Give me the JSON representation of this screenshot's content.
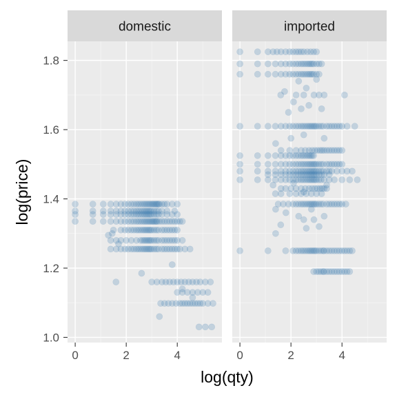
{
  "chart_data": {
    "type": "scatter",
    "xlabel": "log(qty)",
    "ylabel": "log(price)",
    "xlim": [
      -0.3,
      5.75
    ],
    "ylim": [
      0.985,
      1.855
    ],
    "x_ticks": [
      0,
      2,
      4
    ],
    "y_ticks": [
      1.0,
      1.2,
      1.4,
      1.6,
      1.8
    ],
    "x_tick_labels": [
      "0",
      "2",
      "4"
    ],
    "y_tick_labels": [
      "1.0",
      "1.2",
      "1.4",
      "1.6",
      "1.8"
    ],
    "grid": true,
    "point_color": "#4682b4",
    "point_alpha": 0.25,
    "facets": [
      {
        "name": "domestic",
        "bands": [
          {
            "y": 1.385,
            "x": [
              0,
              0.69,
              1.1,
              1.39,
              1.61,
              1.79,
              1.95,
              2.08,
              2.2,
              2.3,
              2.4,
              2.48,
              2.56,
              2.64,
              2.71,
              2.77,
              2.83,
              2.89,
              2.94,
              3.0,
              3.04,
              3.09,
              3.14,
              3.18,
              3.22,
              3.26,
              3.3,
              3.4,
              3.5,
              3.6,
              3.8,
              4.0
            ]
          },
          {
            "y": 1.365,
            "x": [
              0,
              0.69,
              1.1,
              1.39,
              1.61,
              1.79,
              1.95,
              2.08,
              2.2,
              2.3,
              2.4,
              2.48,
              2.56,
              2.64,
              2.71,
              2.77,
              2.83,
              2.89,
              2.94,
              3.0,
              3.09,
              3.18,
              3.26,
              3.4,
              3.6,
              3.9
            ]
          },
          {
            "y": 1.355,
            "x": [
              0,
              0.69,
              1.1,
              1.39,
              1.61,
              1.79,
              1.95,
              2.08,
              2.2,
              2.3,
              2.4,
              2.48,
              2.56,
              2.64,
              2.71,
              2.77,
              2.83,
              2.89,
              2.94,
              3.0,
              3.09,
              3.18,
              3.26,
              3.4,
              3.6,
              3.8,
              4.0
            ]
          },
          {
            "y": 1.335,
            "x": [
              0,
              0.69,
              1.1,
              1.39,
              1.61,
              1.79,
              1.95,
              2.08,
              2.2,
              2.3,
              2.4,
              2.48,
              2.56,
              2.64,
              2.71,
              2.77,
              2.83,
              2.89,
              2.94,
              3.0,
              3.04,
              3.09,
              3.14,
              3.18,
              3.22,
              3.3,
              3.4,
              3.5,
              3.6,
              3.7,
              3.8,
              3.9,
              4.0,
              4.1,
              4.2
            ]
          },
          {
            "y": 1.31,
            "x": [
              1.5,
              1.79,
              1.95,
              2.08,
              2.2,
              2.3,
              2.4,
              2.48,
              2.56,
              2.64,
              2.71,
              2.77,
              2.83,
              2.89,
              2.94,
              3.0,
              3.09,
              3.18,
              3.26,
              3.4,
              3.5,
              3.6,
              3.7,
              3.8,
              3.9,
              4.0
            ]
          },
          {
            "y": 1.28,
            "x": [
              1.39,
              1.61,
              1.79,
              2.0,
              2.2,
              2.4,
              2.56,
              2.64,
              2.71,
              2.77,
              2.83,
              2.89,
              2.94,
              3.0,
              3.09,
              3.18,
              3.26,
              3.4,
              3.5,
              3.6,
              3.7,
              3.8,
              3.9,
              4.0,
              4.2
            ]
          },
          {
            "y": 1.255,
            "x": [
              1.39,
              1.61,
              1.79,
              1.95,
              2.08,
              2.2,
              2.3,
              2.4,
              2.48,
              2.56,
              2.64,
              2.71,
              2.77,
              2.83,
              2.89,
              2.94,
              3.0,
              3.09,
              3.18,
              3.26,
              3.4,
              3.5,
              3.6,
              3.7,
              3.8,
              3.9,
              4.0,
              4.1,
              4.3,
              4.5
            ]
          },
          {
            "y": 1.16,
            "x": [
              1.6,
              3.0,
              3.2,
              3.4,
              3.55,
              3.7,
              3.85,
              4.0,
              4.15,
              4.3,
              4.45,
              4.6,
              4.75,
              4.9,
              5.1,
              5.3
            ]
          },
          {
            "y": 1.13,
            "x": [
              4.0,
              4.2,
              4.4,
              4.6,
              4.8,
              5.0,
              5.2
            ]
          },
          {
            "y": 1.098,
            "x": [
              3.35,
              3.5,
              3.65,
              3.8,
              3.95,
              4.1,
              4.2,
              4.3,
              4.4,
              4.5,
              4.6,
              4.7,
              4.8,
              4.9,
              5.0,
              5.2,
              5.4
            ]
          },
          {
            "y": 1.03,
            "x": [
              4.85,
              5.1,
              5.35
            ]
          }
        ],
        "scatter": [
          {
            "x": 1.3,
            "y": 1.295
          },
          {
            "x": 1.45,
            "y": 1.3
          },
          {
            "x": 1.7,
            "y": 1.27
          },
          {
            "x": 2.6,
            "y": 1.185
          },
          {
            "x": 3.8,
            "y": 1.21
          },
          {
            "x": 3.3,
            "y": 1.06
          },
          {
            "x": 4.2,
            "y": 1.14
          },
          {
            "x": 4.6,
            "y": 1.115
          }
        ]
      },
      {
        "name": "imported",
        "bands": [
          {
            "y": 1.825,
            "x": [
              0,
              0.69,
              1.1,
              1.3,
              1.45,
              1.61,
              1.79,
              1.95,
              2.08,
              2.2,
              2.3,
              2.4,
              2.5,
              2.64,
              2.77,
              2.89,
              3.0
            ]
          },
          {
            "y": 1.79,
            "x": [
              0,
              0.69,
              1.1,
              1.39,
              1.61,
              1.79,
              1.95,
              2.08,
              2.2,
              2.3,
              2.4,
              2.48,
              2.56,
              2.64,
              2.71,
              2.77,
              2.83,
              2.89,
              3.0,
              3.1,
              3.2
            ]
          },
          {
            "y": 1.76,
            "x": [
              0,
              0.69,
              1.1,
              1.39,
              1.61,
              1.79,
              1.95,
              2.08,
              2.2,
              2.3,
              2.4,
              2.48,
              2.56,
              2.64,
              2.71,
              2.77,
              2.83,
              2.89,
              3.0,
              3.1
            ]
          },
          {
            "y": 1.7,
            "x": [
              1.6,
              2.2,
              2.5,
              2.9,
              3.1,
              3.3,
              4.1
            ]
          },
          {
            "y": 1.61,
            "x": [
              0,
              0.69,
              1.1,
              1.39,
              1.61,
              1.79,
              1.95,
              2.08,
              2.2,
              2.3,
              2.4,
              2.48,
              2.56,
              2.64,
              2.71,
              2.77,
              2.83,
              2.89,
              2.94,
              3.0,
              3.09,
              3.18,
              3.26,
              3.4,
              3.5,
              3.6,
              3.7,
              3.8,
              3.9,
              4.0,
              4.2,
              4.5
            ]
          },
          {
            "y": 1.54,
            "x": [
              1.61,
              1.95,
              2.2,
              2.4,
              2.56,
              2.71,
              2.83,
              2.94,
              3.04,
              3.14,
              3.22,
              3.3,
              3.4,
              3.5,
              3.6,
              3.7,
              3.8,
              3.9,
              4.0
            ]
          },
          {
            "y": 1.525,
            "x": [
              0,
              0.69,
              1.1,
              1.39,
              1.61,
              1.79,
              1.95,
              2.08,
              2.2,
              2.3,
              2.4,
              2.48,
              2.56,
              2.64,
              2.71,
              2.77,
              2.83,
              2.89
            ]
          },
          {
            "y": 1.5,
            "x": [
              0,
              0.69,
              1.1,
              1.39,
              1.61,
              1.79,
              1.95,
              2.08,
              2.2,
              2.3,
              2.4,
              2.48,
              2.56,
              2.64,
              2.71,
              2.77,
              2.83,
              2.89,
              2.94,
              3.0,
              3.09,
              3.18,
              3.26,
              3.4,
              3.5,
              3.6,
              3.7,
              3.8,
              3.9,
              4.0
            ]
          },
          {
            "y": 1.48,
            "x": [
              0,
              0.69,
              1.1,
              1.39,
              1.61,
              1.79,
              1.95,
              2.08,
              2.2,
              2.3,
              2.4,
              2.48,
              2.56,
              2.64,
              2.71,
              2.77,
              2.83,
              2.89,
              2.94,
              3.0,
              3.09,
              3.18,
              3.26,
              3.4,
              3.5,
              3.6,
              3.8,
              4.0,
              4.2,
              4.4
            ]
          },
          {
            "y": 1.47,
            "x": [
              1.1,
              1.39,
              1.61,
              1.79,
              1.95,
              2.08,
              2.2,
              2.3,
              2.4,
              2.48,
              2.56,
              2.64,
              2.71,
              2.77,
              2.83,
              2.89,
              2.94,
              3.0,
              3.1,
              3.2,
              3.3,
              3.5
            ]
          },
          {
            "y": 1.455,
            "x": [
              0,
              0.69,
              1.1,
              1.39,
              1.61,
              1.79,
              1.95,
              2.08,
              2.2,
              2.3,
              2.4,
              2.48,
              2.56,
              2.64,
              2.71,
              2.77,
              2.83,
              2.89,
              2.94,
              3.0,
              3.09,
              3.18,
              3.3,
              3.5,
              3.7,
              4.0,
              4.3,
              4.6
            ]
          },
          {
            "y": 1.43,
            "x": [
              1.61,
              1.79,
              2.0,
              2.2,
              2.4,
              2.56,
              2.71,
              2.83,
              2.94,
              3.04,
              3.14,
              3.22,
              3.3,
              3.4
            ]
          },
          {
            "y": 1.415,
            "x": [
              1.39,
              1.61,
              1.95,
              2.2,
              2.4,
              2.6,
              2.8,
              3.0,
              3.2
            ]
          },
          {
            "y": 1.385,
            "x": [
              1.5,
              1.7,
              1.9,
              2.08,
              2.2,
              2.3,
              2.4,
              2.48,
              2.56,
              2.64,
              2.71,
              2.77,
              2.83,
              2.89,
              2.94,
              3.0,
              3.09,
              3.18,
              3.26,
              3.4,
              3.5,
              3.6,
              3.7,
              3.8,
              3.9,
              4.0,
              4.15
            ]
          },
          {
            "y": 1.25,
            "x": [
              0,
              1.1,
              1.79,
              2.08,
              2.2,
              2.3,
              2.4,
              2.48,
              2.56,
              2.64,
              2.71,
              2.77,
              2.83,
              2.89,
              2.94,
              3.0,
              3.09,
              3.18,
              3.26,
              3.3,
              3.4,
              3.5,
              3.6,
              3.7,
              3.8,
              3.9,
              4.0,
              4.1,
              4.2,
              4.3,
              4.4
            ]
          },
          {
            "y": 1.19,
            "x": [
              2.89,
              3.0,
              3.09,
              3.18,
              3.26,
              3.3,
              3.4,
              3.5,
              3.6,
              3.7,
              3.8,
              3.9,
              4.0,
              4.1,
              4.2,
              4.3
            ]
          }
        ],
        "scatter": [
          {
            "x": 1.75,
            "y": 1.71
          },
          {
            "x": 2.3,
            "y": 1.74
          },
          {
            "x": 2.6,
            "y": 1.72
          },
          {
            "x": 2.1,
            "y": 1.68
          },
          {
            "x": 2.4,
            "y": 1.66
          },
          {
            "x": 1.9,
            "y": 1.65
          },
          {
            "x": 2.7,
            "y": 1.67
          },
          {
            "x": 3.2,
            "y": 1.66
          },
          {
            "x": 3.0,
            "y": 1.745
          },
          {
            "x": 2.5,
            "y": 1.585
          },
          {
            "x": 1.4,
            "y": 1.56
          },
          {
            "x": 3.3,
            "y": 1.575
          },
          {
            "x": 2.0,
            "y": 1.575
          },
          {
            "x": 1.3,
            "y": 1.44
          },
          {
            "x": 2.1,
            "y": 1.445
          },
          {
            "x": 2.5,
            "y": 1.42
          },
          {
            "x": 3.4,
            "y": 1.44
          },
          {
            "x": 1.8,
            "y": 1.36
          },
          {
            "x": 1.4,
            "y": 1.37
          },
          {
            "x": 2.3,
            "y": 1.35
          },
          {
            "x": 2.5,
            "y": 1.34
          },
          {
            "x": 2.9,
            "y": 1.34
          },
          {
            "x": 3.1,
            "y": 1.32
          },
          {
            "x": 1.6,
            "y": 1.325
          },
          {
            "x": 2.6,
            "y": 1.315
          },
          {
            "x": 1.4,
            "y": 1.3
          },
          {
            "x": 3.3,
            "y": 1.35
          },
          {
            "x": 2.8,
            "y": 1.37
          }
        ]
      }
    ]
  }
}
